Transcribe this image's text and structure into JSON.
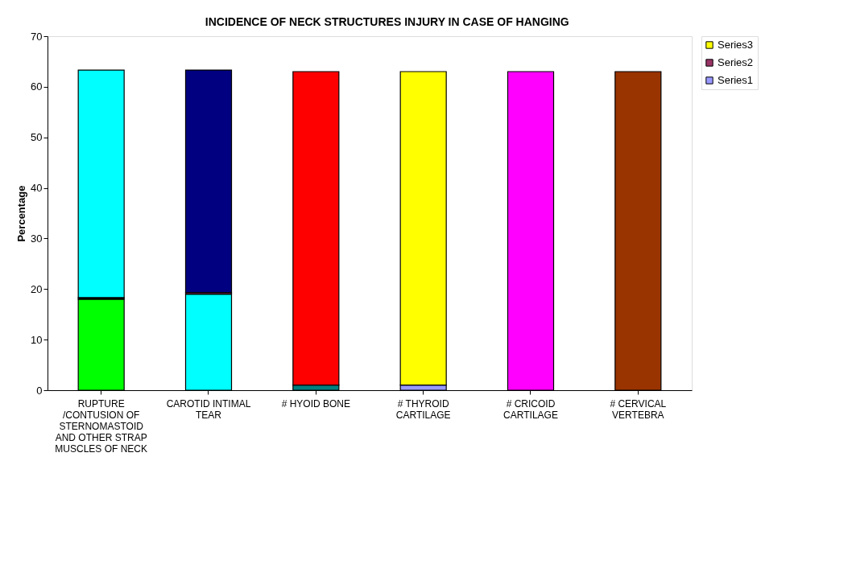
{
  "chart_data": {
    "type": "bar",
    "title": "INCIDENCE OF NECK STRUCTURES INJURY IN CASE OF HANGING",
    "ylabel": "Percentage",
    "categories": [
      "RUPTURE /CONTUSION OF STERNOMASTOID AND OTHER STRAP MUSCLES OF NECK",
      "CAROTID INTIMAL TEAR",
      "# HYOID BONE",
      "# THYROID CARTILAGE",
      "# CRICOID CARTILAGE",
      "# CERVICAL VERTEBRA"
    ],
    "stacked": true,
    "series": [
      {
        "name": "Series1",
        "color": "#9999ff",
        "colors": [
          "#00ff00",
          "#00ffff",
          "#008080",
          "#9999ff",
          "#ff00ff",
          "#993300"
        ],
        "values": [
          18,
          19,
          1,
          1,
          63,
          63
        ]
      },
      {
        "name": "Series2",
        "color": "#993366",
        "colors": [
          "#000000",
          "#993366",
          "#993366",
          "#993366",
          "#993366",
          "#993366"
        ],
        "values": [
          0.3,
          0.3,
          null,
          null,
          null,
          null
        ]
      },
      {
        "name": "Series3",
        "color": "#ffff00",
        "colors": [
          "#00ffff",
          "#000080",
          "#ff0000",
          "#ffff00",
          "#ffff00",
          "#ffff00"
        ],
        "values": [
          45,
          44,
          62,
          62,
          null,
          null
        ]
      }
    ],
    "ylim": [
      0,
      70
    ],
    "yticks": [
      0,
      10,
      20,
      30,
      40,
      50,
      60,
      70
    ],
    "grid": false,
    "legend": "right"
  }
}
